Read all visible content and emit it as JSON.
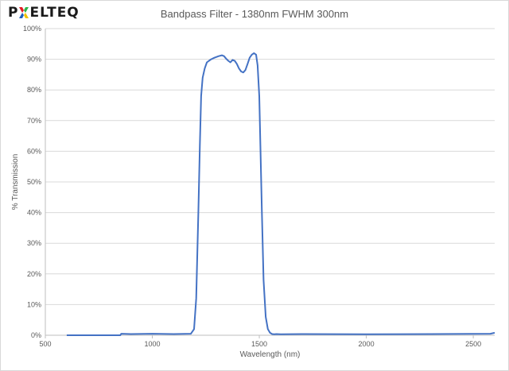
{
  "logo": {
    "text_before": "P",
    "text_after": "ELTEQ",
    "mark_colors": [
      "#e31b23",
      "#2db34a",
      "#1f5fbf",
      "#f2c200"
    ]
  },
  "chart_data": {
    "type": "line",
    "title": "Bandpass Filter - 1380nm FWHM 300nm",
    "xlabel": "Wavelength (nm)",
    "ylabel": "% Transmission",
    "xlim": [
      500,
      2600
    ],
    "ylim": [
      0,
      100
    ],
    "x_ticks": [
      500,
      1000,
      1500,
      2000,
      2500
    ],
    "x_tick_labels": [
      "500",
      "1000",
      "1500",
      "2000",
      "2500"
    ],
    "y_ticks": [
      0,
      10,
      20,
      30,
      40,
      50,
      60,
      70,
      80,
      90,
      100
    ],
    "y_tick_labels": [
      "0%",
      "10%",
      "20%",
      "30%",
      "40%",
      "50%",
      "60%",
      "70%",
      "80%",
      "90%",
      "100%"
    ],
    "grid": "horizontal",
    "legend": "none",
    "line_color": "#4472c4",
    "series": [
      {
        "x": [
          600,
          850,
          855,
          900,
          1000,
          1100,
          1180,
          1195,
          1205,
          1215,
          1222,
          1228,
          1235,
          1245,
          1255,
          1265,
          1275,
          1290,
          1310,
          1325,
          1335,
          1345,
          1355,
          1365,
          1375,
          1385,
          1395,
          1405,
          1415,
          1425,
          1435,
          1445,
          1455,
          1465,
          1475,
          1485,
          1492,
          1500,
          1505,
          1512,
          1520,
          1530,
          1540,
          1550,
          1560,
          1570,
          1580,
          1600,
          1700,
          2000,
          2300,
          2580,
          2600
        ],
        "y": [
          0,
          0,
          0.5,
          0.4,
          0.5,
          0.4,
          0.5,
          2,
          12,
          40,
          62,
          78,
          84,
          87,
          89,
          89.5,
          90,
          90.5,
          91,
          91.3,
          91,
          90.2,
          89.5,
          89,
          89.8,
          89.5,
          88.5,
          87,
          86,
          85.7,
          86.5,
          88.5,
          90.5,
          91.5,
          92,
          91.5,
          88,
          78,
          62,
          40,
          18,
          6,
          2,
          0.8,
          0.4,
          0.3,
          0.4,
          0.3,
          0.4,
          0.3,
          0.4,
          0.5,
          0.8
        ]
      }
    ]
  }
}
